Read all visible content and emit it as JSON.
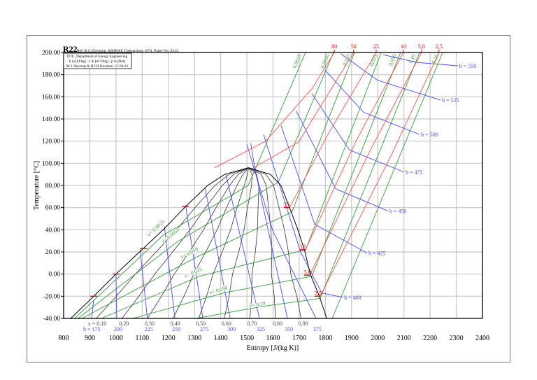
{
  "chart_data": {
    "type": "line",
    "title": "R22",
    "reference": "Ref :R.C.Downing. ASHRAE Transactions 1974. Paper No. 2313.",
    "info_box": [
      "DTU, Department of Energy Engineering",
      "h in [kJ/kg] ; v in [m^3/kg] ; p in [Bar]",
      "M.J. Skovrup & H.J.H Knudsen. 25-04-23"
    ],
    "xlabel": "Entropy [J/(kg K)]",
    "ylabel": "Temperature [°C]",
    "xlim": [
      800,
      2400
    ],
    "ylim": [
      -40,
      200
    ],
    "grid": true,
    "x_ticks": [
      "800",
      "900",
      "1000",
      "1100",
      "1200",
      "1300",
      "1400",
      "1500",
      "1600",
      "1700",
      "1800",
      "1900",
      "2000",
      "2100",
      "2200",
      "2300",
      "2400"
    ],
    "y_ticks": [
      "-40.00",
      "-20.00",
      "0.00",
      "20.00",
      "40.00",
      "60.00",
      "80.00",
      "100.00",
      "120.00",
      "140.00",
      "160.00",
      "180.00",
      "200.00"
    ],
    "saturation_liquid": [
      [
        827,
        -40
      ],
      [
        915,
        -20
      ],
      [
        1000,
        0
      ],
      [
        1090,
        20
      ],
      [
        1180,
        40
      ],
      [
        1262,
        60
      ],
      [
        1350,
        80
      ],
      [
        1415,
        90
      ],
      [
        1506,
        96
      ]
    ],
    "saturation_vapor": [
      [
        1506,
        96
      ],
      [
        1590,
        90
      ],
      [
        1630,
        80
      ],
      [
        1663,
        60
      ],
      [
        1695,
        40
      ],
      [
        1722,
        20
      ],
      [
        1742,
        0
      ],
      [
        1777,
        -20
      ],
      [
        1805,
        -40
      ]
    ],
    "quality_lines": [
      {
        "x": 0.1,
        "label": "x = 0,10"
      },
      {
        "x": 0.2,
        "label": "0,20"
      },
      {
        "x": 0.3,
        "label": "0,30"
      },
      {
        "x": 0.4,
        "label": "0,40"
      },
      {
        "x": 0.5,
        "label": "0,50"
      },
      {
        "x": 0.6,
        "label": "0,60"
      },
      {
        "x": 0.7,
        "label": "0,70"
      },
      {
        "x": 0.8,
        "label": "0,80"
      },
      {
        "x": 0.9,
        "label": "0,90"
      }
    ],
    "isobars_bar": [
      {
        "label": "80",
        "points": [
          [
            1377,
            96
          ],
          [
            1572,
            120
          ],
          [
            1751,
            168
          ],
          [
            1834,
            200
          ]
        ]
      },
      {
        "label": "50",
        "points": [
          [
            1518,
            95
          ],
          [
            1697,
            119
          ],
          [
            1908,
            200
          ]
        ],
        "liquid_mark_T": null
      },
      {
        "label": "25",
        "points": [
          [
            1663,
            60
          ],
          [
            1812,
            127
          ],
          [
            1994,
            200
          ]
        ],
        "liquid_mark": [
          1265,
          61
        ],
        "sat_label": "25"
      },
      {
        "label": "10",
        "points": [
          [
            1724,
            22
          ],
          [
            1919,
            121
          ],
          [
            2098,
            200
          ]
        ],
        "liquid_mark": [
          1105,
          23
        ],
        "sat_label": "10"
      },
      {
        "label": "5,0",
        "points": [
          [
            1740,
            -1
          ],
          [
            1972,
            112
          ],
          [
            2167,
            200
          ]
        ],
        "liquid_mark": [
          1000,
          0
        ],
        "sat_label": "5,0"
      },
      {
        "label": "2,5",
        "points": [
          [
            1780,
            -20
          ],
          [
            2053,
            108
          ],
          [
            2234,
            200
          ]
        ],
        "liquid_mark": [
          915,
          -20
        ],
        "sat_label": "2,5"
      }
    ],
    "isochores_m3kg": [
      {
        "label": "0,0025",
        "dome_label": "v= 0,0025",
        "points": [
          [
            842,
            -40
          ],
          [
            1180,
            35
          ],
          [
            1505,
            80
          ],
          [
            1560,
            110
          ],
          [
            1724,
            200
          ]
        ]
      },
      {
        "label": "0,0050",
        "dome_label": "v= 0,0050",
        "points": [
          [
            855,
            -40
          ],
          [
            1233,
            29
          ],
          [
            1620,
            83
          ],
          [
            1831,
            200
          ]
        ]
      },
      {
        "label": "0,010",
        "dome_label": "v= 0,010",
        "points": [
          [
            870,
            -40
          ],
          [
            1305,
            15
          ],
          [
            1672,
            56
          ],
          [
            1911,
            200
          ]
        ]
      },
      {
        "label": "0,025",
        "dome_label": "v= 0,025",
        "points": [
          [
            944,
            -40
          ],
          [
            1318,
            -2
          ],
          [
            1725,
            22
          ],
          [
            2013,
            200
          ]
        ]
      },
      {
        "label": "0,050",
        "dome_label": "v= 0,050",
        "points": [
          [
            1065,
            -40
          ],
          [
            1412,
            -17
          ],
          [
            1748,
            -2
          ],
          [
            2087,
            200
          ]
        ]
      },
      {
        "label": "0,10",
        "dome_label": "v= 0,10",
        "points": [
          [
            1305,
            -40
          ],
          [
            1564,
            -29
          ],
          [
            1780,
            -22
          ],
          [
            2160,
            200
          ]
        ]
      },
      {
        "label": "0,25",
        "dome_label": "",
        "points": [
          [
            1826,
            -40
          ],
          [
            2248,
            200
          ]
        ]
      }
    ],
    "isenthalps_kJkg": [
      {
        "label": "h = 175",
        "end_label": "",
        "points": [
          [
            907,
            -40
          ],
          [
            915,
            -23
          ]
        ]
      },
      {
        "label": "200",
        "end_label": "",
        "points": [
          [
            1003,
            -40
          ],
          [
            1000,
            0
          ]
        ]
      },
      {
        "label": "225",
        "end_label": "",
        "points": [
          [
            1120,
            -40
          ],
          [
            1092,
            22
          ]
        ]
      },
      {
        "label": "250",
        "end_label": "",
        "points": [
          [
            1225,
            -40
          ],
          [
            1185,
            43
          ]
        ]
      },
      {
        "label": "275",
        "end_label": "",
        "points": [
          [
            1332,
            -40
          ],
          [
            1266,
            62
          ]
        ]
      },
      {
        "label": "300",
        "end_label": "",
        "points": [
          [
            1436,
            -40
          ],
          [
            1340,
            78
          ]
        ]
      },
      {
        "label": "325",
        "end_label": "",
        "points": [
          [
            1548,
            -40
          ],
          [
            1420,
            90
          ]
        ]
      },
      {
        "label": "350",
        "end_label": "",
        "points": [
          [
            1655,
            -40
          ],
          [
            1590,
            30
          ],
          [
            1530,
            96
          ],
          [
            1515,
            118
          ]
        ]
      },
      {
        "label": "375",
        "end_label": "",
        "points": [
          [
            1764,
            -40
          ],
          [
            1599,
            39
          ],
          [
            1500,
            117
          ]
        ]
      },
      {
        "label": "",
        "end_label": "h = 400",
        "points": [
          [
            1564,
            126
          ],
          [
            1705,
            20
          ],
          [
            1786,
            -17
          ],
          [
            1866,
            -21
          ]
        ]
      },
      {
        "label": "",
        "end_label": "h = 425",
        "points": [
          [
            1631,
            134
          ],
          [
            1759,
            45
          ],
          [
            1959,
            19
          ]
        ]
      },
      {
        "label": "",
        "end_label": "h = 450",
        "points": [
          [
            1689,
            147
          ],
          [
            1839,
            77
          ],
          [
            2039,
            57
          ]
        ]
      },
      {
        "label": "",
        "end_label": "h = 475",
        "points": [
          [
            1748,
            163
          ],
          [
            1892,
            112
          ],
          [
            2101,
            92
          ]
        ]
      },
      {
        "label": "",
        "end_label": "h = 500",
        "points": [
          [
            1799,
            184
          ],
          [
            1946,
            146
          ],
          [
            2160,
            126
          ]
        ]
      },
      {
        "label": "",
        "end_label": "h = 525",
        "points": [
          [
            1858,
            199
          ],
          [
            1999,
            175
          ],
          [
            2240,
            157
          ]
        ]
      },
      {
        "label": "",
        "end_label": "h = 550",
        "points": [
          [
            2021,
            198
          ],
          [
            2150,
            191
          ],
          [
            2306,
            188
          ]
        ]
      }
    ],
    "colors": {
      "saturation": "#000000",
      "quality": "#333333",
      "isobar": "#ff5050",
      "isochore": "#3a9a3a",
      "isenthalp": "#4a4aff",
      "grid": "#c8c8c8",
      "isobar_label": "#e00000"
    }
  }
}
